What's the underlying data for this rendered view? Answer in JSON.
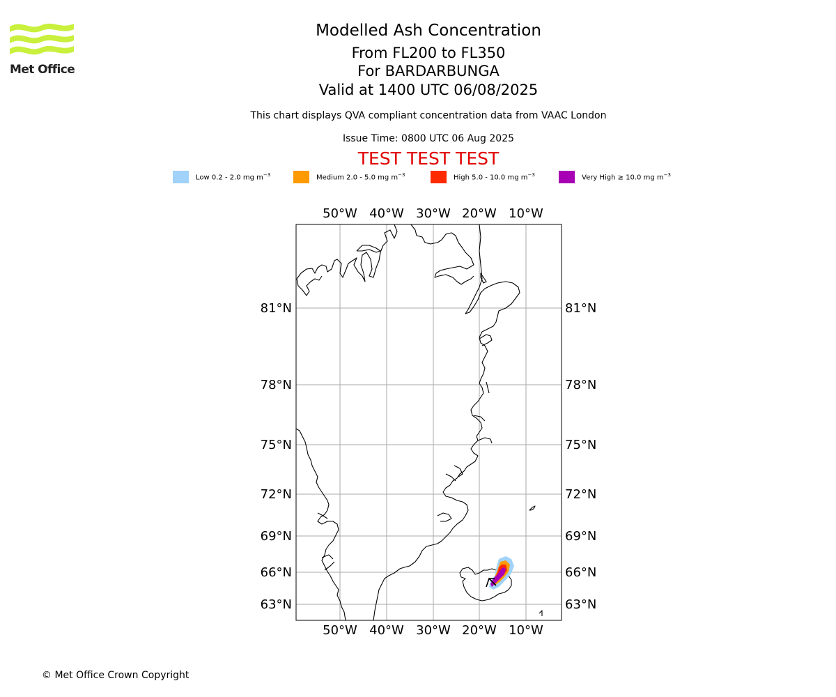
{
  "header": {
    "logo_text": "Met Office",
    "title": "Modelled Ash Concentration",
    "level_range": "From FL200 to FL350",
    "volcano": "For BARDARBUNGA",
    "valid_time": "Valid at 1400 UTC 06/08/2025",
    "description": "This chart displays QVA compliant concentration data from VAAC London",
    "issue_time": "Issue Time: 0800 UTC 06 Aug 2025",
    "test_banner": "TEST TEST TEST",
    "test_banner_color": "#e00000"
  },
  "legend": {
    "items": [
      {
        "label": "Low 0.2 - 2.0 mg m",
        "unit_exp": "−3",
        "color": "#a0d2fa"
      },
      {
        "label": "Medium 2.0 - 5.0 mg m",
        "unit_exp": "−3",
        "color": "#ff9a00"
      },
      {
        "label": "High 5.0 - 10.0 mg m",
        "unit_exp": "−3",
        "color": "#ff2a00"
      },
      {
        "label": "Very High  ≥  10.0 mg m",
        "unit_exp": "−3",
        "color": "#a800b4"
      }
    ]
  },
  "map": {
    "lon_labels": [
      "50°W",
      "40°W",
      "30°W",
      "20°W",
      "10°W"
    ],
    "lat_labels": [
      "81°N",
      "78°N",
      "75°N",
      "72°N",
      "69°N",
      "66°N",
      "63°N"
    ],
    "gridlines": true,
    "coastline_color": "#000000",
    "grid_color": "#aaaaaa"
  },
  "footer": {
    "copyright": "© Met Office Crown Copyright"
  }
}
